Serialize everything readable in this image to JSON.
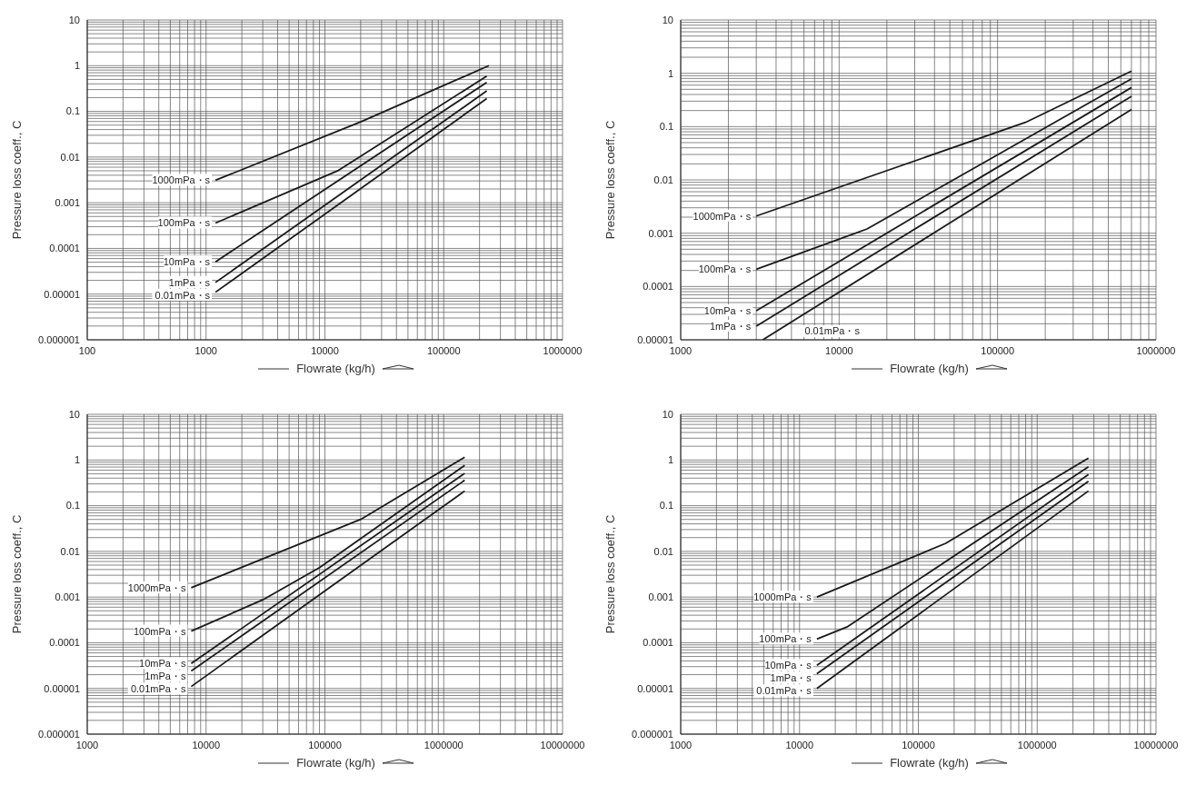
{
  "chart_data": [
    {
      "type": "line",
      "xlabel": "Flowrate (kg/h)",
      "ylabel": "Pressure loss coeff., C",
      "log": "xy",
      "grid": true,
      "xlim": [
        100,
        1000000
      ],
      "ylim": [
        1e-06,
        10
      ],
      "xticks": [
        100,
        {
          "value": 200,
          "label": null
        },
        {
          "value": 300,
          "label": null
        },
        {
          "value": 400,
          "label": null
        },
        {
          "value": 500,
          "label": null
        },
        {
          "value": 600,
          "label": null
        },
        {
          "value": 700,
          "label": null
        },
        {
          "value": 800,
          "label": null
        },
        {
          "value": 900,
          "label": null
        },
        1000,
        {
          "value": 2000,
          "label": null
        },
        {
          "value": 3000,
          "label": null
        },
        {
          "value": 4000,
          "label": null
        },
        {
          "value": 5000,
          "label": null
        },
        {
          "value": 6000,
          "label": null
        },
        {
          "value": 7000,
          "label": null
        },
        {
          "value": 8000,
          "label": null
        },
        {
          "value": 9000,
          "label": null
        },
        10000,
        {
          "value": 20000,
          "label": null
        },
        {
          "value": 30000,
          "label": null
        },
        {
          "value": 40000,
          "label": null
        },
        {
          "value": 50000,
          "label": null
        },
        {
          "value": 60000,
          "label": null
        },
        {
          "value": 70000,
          "label": null
        },
        {
          "value": 80000,
          "label": null
        },
        {
          "value": 90000,
          "label": null
        },
        100000,
        {
          "value": 200000,
          "label": null
        },
        {
          "value": 300000,
          "label": null
        },
        {
          "value": 400000,
          "label": null
        },
        {
          "value": 500000,
          "label": null
        },
        {
          "value": 600000,
          "label": null
        },
        {
          "value": 700000,
          "label": null
        },
        {
          "value": 800000,
          "label": null
        },
        {
          "value": 900000,
          "label": null
        },
        1000000
      ],
      "yticks": [
        {
          "value": 1e-06,
          "label": "0.000001"
        },
        {
          "value": 2e-06,
          "label": null
        },
        {
          "value": 3e-06,
          "label": null
        },
        {
          "value": 4e-06,
          "label": null
        },
        {
          "value": 5e-06,
          "label": null
        },
        {
          "value": 6e-06,
          "label": null
        },
        {
          "value": 7e-06,
          "label": null
        },
        {
          "value": 8e-06,
          "label": null
        },
        {
          "value": 9e-06,
          "label": null
        },
        {
          "value": 1e-05,
          "label": "0.00001"
        },
        {
          "value": 2e-05,
          "label": null
        },
        {
          "value": 3e-05,
          "label": null
        },
        {
          "value": 4e-05,
          "label": null
        },
        {
          "value": 5e-05,
          "label": null
        },
        {
          "value": 6e-05,
          "label": null
        },
        {
          "value": 7e-05,
          "label": null
        },
        {
          "value": 8e-05,
          "label": null
        },
        {
          "value": 9e-05,
          "label": null
        },
        0.0001,
        {
          "value": 0.0002,
          "label": null
        },
        {
          "value": 0.0003,
          "label": null
        },
        {
          "value": 0.0004,
          "label": null
        },
        {
          "value": 0.0005,
          "label": null
        },
        {
          "value": 0.0006,
          "label": null
        },
        {
          "value": 0.0007,
          "label": null
        },
        {
          "value": 0.0008,
          "label": null
        },
        {
          "value": 0.0009,
          "label": null
        },
        0.001,
        {
          "value": 0.002,
          "label": null
        },
        {
          "value": 0.003,
          "label": null
        },
        {
          "value": 0.004,
          "label": null
        },
        {
          "value": 0.005,
          "label": null
        },
        {
          "value": 0.006,
          "label": null
        },
        {
          "value": 0.007,
          "label": null
        },
        {
          "value": 0.008,
          "label": null
        },
        {
          "value": 0.009,
          "label": null
        },
        0.01,
        {
          "value": 0.02,
          "label": null
        },
        {
          "value": 0.03,
          "label": null
        },
        {
          "value": 0.04,
          "label": null
        },
        {
          "value": 0.05,
          "label": null
        },
        {
          "value": 0.06,
          "label": null
        },
        {
          "value": 0.07,
          "label": null
        },
        {
          "value": 0.08,
          "label": null
        },
        {
          "value": 0.09,
          "label": null
        },
        0.1,
        {
          "value": 0.2,
          "label": null
        },
        {
          "value": 0.3,
          "label": null
        },
        {
          "value": 0.4,
          "label": null
        },
        {
          "value": 0.5,
          "label": null
        },
        {
          "value": 0.6,
          "label": null
        },
        {
          "value": 0.7,
          "label": null
        },
        {
          "value": 0.8,
          "label": null
        },
        {
          "value": 0.9,
          "label": null
        },
        1,
        {
          "value": 2,
          "label": null
        },
        {
          "value": 3,
          "label": null
        },
        {
          "value": 4,
          "label": null
        },
        {
          "value": 5,
          "label": null
        },
        {
          "value": 6,
          "label": null
        },
        {
          "value": 7,
          "label": null
        },
        {
          "value": 8,
          "label": null
        },
        {
          "value": 9,
          "label": null
        },
        10
      ],
      "series": [
        {
          "name": "1000mPa・s",
          "color": "#1a1a1a",
          "x": [
            1200,
            20000,
            240000
          ],
          "values": [
            0.0031,
            0.059,
            1.0
          ]
        },
        {
          "name": "100mPa・s",
          "color": "#1a1a1a",
          "x": [
            1200,
            13000,
            230000
          ],
          "values": [
            0.00036,
            0.0051,
            0.59
          ]
        },
        {
          "name": "10mPa・s",
          "color": "#1a1a1a",
          "x": [
            1200,
            230000
          ],
          "values": [
            5.1e-05,
            0.43
          ]
        },
        {
          "name": "1mPa・s",
          "color": "#1a1a1a",
          "x": [
            1200,
            230000
          ],
          "values": [
            1.8e-05,
            0.28
          ]
        },
        {
          "name": "0.01mPa・s",
          "color": "#1a1a1a",
          "x": [
            1200,
            230000
          ],
          "values": [
            1.1e-05,
            0.19
          ]
        }
      ]
    },
    {
      "type": "line",
      "xlabel": "Flowrate (kg/h)",
      "ylabel": "Pressure loss coeff., C",
      "log": "xy",
      "grid": true,
      "xlim": [
        1000,
        1000000
      ],
      "ylim": [
        1e-05,
        10
      ],
      "xticks": [
        1000,
        {
          "value": 2000,
          "label": null
        },
        {
          "value": 3000,
          "label": null
        },
        {
          "value": 4000,
          "label": null
        },
        {
          "value": 5000,
          "label": null
        },
        {
          "value": 6000,
          "label": null
        },
        {
          "value": 7000,
          "label": null
        },
        {
          "value": 8000,
          "label": null
        },
        {
          "value": 9000,
          "label": null
        },
        10000,
        {
          "value": 20000,
          "label": null
        },
        {
          "value": 30000,
          "label": null
        },
        {
          "value": 40000,
          "label": null
        },
        {
          "value": 50000,
          "label": null
        },
        {
          "value": 60000,
          "label": null
        },
        {
          "value": 70000,
          "label": null
        },
        {
          "value": 80000,
          "label": null
        },
        {
          "value": 90000,
          "label": null
        },
        100000,
        {
          "value": 200000,
          "label": null
        },
        {
          "value": 300000,
          "label": null
        },
        {
          "value": 400000,
          "label": null
        },
        {
          "value": 500000,
          "label": null
        },
        {
          "value": 600000,
          "label": null
        },
        {
          "value": 700000,
          "label": null
        },
        {
          "value": 800000,
          "label": null
        },
        {
          "value": 900000,
          "label": null
        },
        1000000
      ],
      "yticks": [
        {
          "value": 1e-05,
          "label": "0.00001"
        },
        {
          "value": 2e-05,
          "label": null
        },
        {
          "value": 3e-05,
          "label": null
        },
        {
          "value": 4e-05,
          "label": null
        },
        {
          "value": 5e-05,
          "label": null
        },
        {
          "value": 6e-05,
          "label": null
        },
        {
          "value": 7e-05,
          "label": null
        },
        {
          "value": 8e-05,
          "label": null
        },
        {
          "value": 9e-05,
          "label": null
        },
        0.0001,
        {
          "value": 0.0002,
          "label": null
        },
        {
          "value": 0.0003,
          "label": null
        },
        {
          "value": 0.0004,
          "label": null
        },
        {
          "value": 0.0005,
          "label": null
        },
        {
          "value": 0.0006,
          "label": null
        },
        {
          "value": 0.0007,
          "label": null
        },
        {
          "value": 0.0008,
          "label": null
        },
        {
          "value": 0.0009,
          "label": null
        },
        0.001,
        {
          "value": 0.002,
          "label": null
        },
        {
          "value": 0.003,
          "label": null
        },
        {
          "value": 0.004,
          "label": null
        },
        {
          "value": 0.005,
          "label": null
        },
        {
          "value": 0.006,
          "label": null
        },
        {
          "value": 0.007,
          "label": null
        },
        {
          "value": 0.008,
          "label": null
        },
        {
          "value": 0.009,
          "label": null
        },
        0.01,
        {
          "value": 0.02,
          "label": null
        },
        {
          "value": 0.03,
          "label": null
        },
        {
          "value": 0.04,
          "label": null
        },
        {
          "value": 0.05,
          "label": null
        },
        {
          "value": 0.06,
          "label": null
        },
        {
          "value": 0.07,
          "label": null
        },
        {
          "value": 0.08,
          "label": null
        },
        {
          "value": 0.09,
          "label": null
        },
        0.1,
        {
          "value": 0.2,
          "label": null
        },
        {
          "value": 0.3,
          "label": null
        },
        {
          "value": 0.4,
          "label": null
        },
        {
          "value": 0.5,
          "label": null
        },
        {
          "value": 0.6,
          "label": null
        },
        {
          "value": 0.7,
          "label": null
        },
        {
          "value": 0.8,
          "label": null
        },
        {
          "value": 0.9,
          "label": null
        },
        1,
        {
          "value": 2,
          "label": null
        },
        {
          "value": 3,
          "label": null
        },
        {
          "value": 4,
          "label": null
        },
        {
          "value": 5,
          "label": null
        },
        {
          "value": 6,
          "label": null
        },
        {
          "value": 7,
          "label": null
        },
        {
          "value": 8,
          "label": null
        },
        {
          "value": 9,
          "label": null
        },
        10
      ],
      "series": [
        {
          "name": "1000mPa・s",
          "color": "#1a1a1a",
          "x": [
            3000,
            150000,
            700000
          ],
          "values": [
            0.0021,
            0.12,
            1.1
          ]
        },
        {
          "name": "100mPa・s",
          "color": "#1a1a1a",
          "x": [
            3000,
            15000,
            700000
          ],
          "values": [
            0.00021,
            0.0012,
            0.79
          ]
        },
        {
          "name": "10mPa・s",
          "color": "#1a1a1a",
          "x": [
            3000,
            700000
          ],
          "values": [
            3.5e-05,
            0.54
          ]
        },
        {
          "name": "1mPa・s",
          "color": "#1a1a1a",
          "x": [
            3000,
            700000
          ],
          "values": [
            1.8e-05,
            0.37
          ]
        },
        {
          "name": "0.01mPa・s",
          "color": "#1a1a1a",
          "x": [
            3300,
            700000
          ],
          "values": [
            1e-05,
            0.21
          ]
        }
      ]
    },
    {
      "type": "line",
      "xlabel": "Flowrate (kg/h)",
      "ylabel": "Pressure loss coeff., C",
      "log": "xy",
      "grid": true,
      "xlim": [
        1000,
        10000000
      ],
      "ylim": [
        1e-06,
        10
      ],
      "xticks": [
        1000,
        {
          "value": 2000,
          "label": null
        },
        {
          "value": 3000,
          "label": null
        },
        {
          "value": 4000,
          "label": null
        },
        {
          "value": 5000,
          "label": null
        },
        {
          "value": 6000,
          "label": null
        },
        {
          "value": 7000,
          "label": null
        },
        {
          "value": 8000,
          "label": null
        },
        {
          "value": 9000,
          "label": null
        },
        10000,
        {
          "value": 20000,
          "label": null
        },
        {
          "value": 30000,
          "label": null
        },
        {
          "value": 40000,
          "label": null
        },
        {
          "value": 50000,
          "label": null
        },
        {
          "value": 60000,
          "label": null
        },
        {
          "value": 70000,
          "label": null
        },
        {
          "value": 80000,
          "label": null
        },
        {
          "value": 90000,
          "label": null
        },
        100000,
        {
          "value": 200000,
          "label": null
        },
        {
          "value": 300000,
          "label": null
        },
        {
          "value": 400000,
          "label": null
        },
        {
          "value": 500000,
          "label": null
        },
        {
          "value": 600000,
          "label": null
        },
        {
          "value": 700000,
          "label": null
        },
        {
          "value": 800000,
          "label": null
        },
        {
          "value": 900000,
          "label": null
        },
        1000000,
        {
          "value": 2000000,
          "label": null
        },
        {
          "value": 3000000,
          "label": null
        },
        {
          "value": 4000000,
          "label": null
        },
        {
          "value": 5000000,
          "label": null
        },
        {
          "value": 6000000,
          "label": null
        },
        {
          "value": 7000000,
          "label": null
        },
        {
          "value": 8000000,
          "label": null
        },
        {
          "value": 9000000,
          "label": null
        },
        10000000
      ],
      "yticks": [
        {
          "value": 1e-06,
          "label": "0.000001"
        },
        {
          "value": 2e-06,
          "label": null
        },
        {
          "value": 3e-06,
          "label": null
        },
        {
          "value": 4e-06,
          "label": null
        },
        {
          "value": 5e-06,
          "label": null
        },
        {
          "value": 6e-06,
          "label": null
        },
        {
          "value": 7e-06,
          "label": null
        },
        {
          "value": 8e-06,
          "label": null
        },
        {
          "value": 9e-06,
          "label": null
        },
        {
          "value": 1e-05,
          "label": "0.00001"
        },
        {
          "value": 2e-05,
          "label": null
        },
        {
          "value": 3e-05,
          "label": null
        },
        {
          "value": 4e-05,
          "label": null
        },
        {
          "value": 5e-05,
          "label": null
        },
        {
          "value": 6e-05,
          "label": null
        },
        {
          "value": 7e-05,
          "label": null
        },
        {
          "value": 8e-05,
          "label": null
        },
        {
          "value": 9e-05,
          "label": null
        },
        0.0001,
        {
          "value": 0.0002,
          "label": null
        },
        {
          "value": 0.0003,
          "label": null
        },
        {
          "value": 0.0004,
          "label": null
        },
        {
          "value": 0.0005,
          "label": null
        },
        {
          "value": 0.0006,
          "label": null
        },
        {
          "value": 0.0007,
          "label": null
        },
        {
          "value": 0.0008,
          "label": null
        },
        {
          "value": 0.0009,
          "label": null
        },
        0.001,
        {
          "value": 0.002,
          "label": null
        },
        {
          "value": 0.003,
          "label": null
        },
        {
          "value": 0.004,
          "label": null
        },
        {
          "value": 0.005,
          "label": null
        },
        {
          "value": 0.006,
          "label": null
        },
        {
          "value": 0.007,
          "label": null
        },
        {
          "value": 0.008,
          "label": null
        },
        {
          "value": 0.009,
          "label": null
        },
        0.01,
        {
          "value": 0.02,
          "label": null
        },
        {
          "value": 0.03,
          "label": null
        },
        {
          "value": 0.04,
          "label": null
        },
        {
          "value": 0.05,
          "label": null
        },
        {
          "value": 0.06,
          "label": null
        },
        {
          "value": 0.07,
          "label": null
        },
        {
          "value": 0.08,
          "label": null
        },
        {
          "value": 0.09,
          "label": null
        },
        0.1,
        {
          "value": 0.2,
          "label": null
        },
        {
          "value": 0.3,
          "label": null
        },
        {
          "value": 0.4,
          "label": null
        },
        {
          "value": 0.5,
          "label": null
        },
        {
          "value": 0.6,
          "label": null
        },
        {
          "value": 0.7,
          "label": null
        },
        {
          "value": 0.8,
          "label": null
        },
        {
          "value": 0.9,
          "label": null
        },
        1,
        {
          "value": 2,
          "label": null
        },
        {
          "value": 3,
          "label": null
        },
        {
          "value": 4,
          "label": null
        },
        {
          "value": 5,
          "label": null
        },
        {
          "value": 6,
          "label": null
        },
        {
          "value": 7,
          "label": null
        },
        {
          "value": 8,
          "label": null
        },
        {
          "value": 9,
          "label": null
        },
        10
      ],
      "series": [
        {
          "name": "1000mPa・s",
          "color": "#1a1a1a",
          "x": [
            7500,
            200000,
            1500000
          ],
          "values": [
            0.0016,
            0.05,
            1.15
          ]
        },
        {
          "name": "100mPa・s",
          "color": "#1a1a1a",
          "x": [
            7500,
            30000,
            90000,
            1500000
          ],
          "values": [
            0.00018,
            0.00087,
            0.0044,
            0.76
          ]
        },
        {
          "name": "10mPa・s",
          "color": "#1a1a1a",
          "x": [
            7500,
            1500000
          ],
          "values": [
            3.5e-05,
            0.51
          ]
        },
        {
          "name": "1mPa・s",
          "color": "#1a1a1a",
          "x": [
            7500,
            1500000
          ],
          "values": [
            2.4e-05,
            0.36
          ]
        },
        {
          "name": "0.01mPa・s",
          "color": "#1a1a1a",
          "x": [
            7500,
            1500000
          ],
          "values": [
            1.1e-05,
            0.21
          ]
        }
      ]
    },
    {
      "type": "line",
      "xlabel": "Flowrate (kg/h)",
      "ylabel": "Pressure loss coeff., C",
      "log": "xy",
      "grid": true,
      "xlim": [
        1000,
        10000000
      ],
      "ylim": [
        1e-06,
        10
      ],
      "xticks": [
        1000,
        {
          "value": 2000,
          "label": null
        },
        {
          "value": 3000,
          "label": null
        },
        {
          "value": 4000,
          "label": null
        },
        {
          "value": 5000,
          "label": null
        },
        {
          "value": 6000,
          "label": null
        },
        {
          "value": 7000,
          "label": null
        },
        {
          "value": 8000,
          "label": null
        },
        {
          "value": 9000,
          "label": null
        },
        10000,
        {
          "value": 20000,
          "label": null
        },
        {
          "value": 30000,
          "label": null
        },
        {
          "value": 40000,
          "label": null
        },
        {
          "value": 50000,
          "label": null
        },
        {
          "value": 60000,
          "label": null
        },
        {
          "value": 70000,
          "label": null
        },
        {
          "value": 80000,
          "label": null
        },
        {
          "value": 90000,
          "label": null
        },
        100000,
        {
          "value": 200000,
          "label": null
        },
        {
          "value": 300000,
          "label": null
        },
        {
          "value": 400000,
          "label": null
        },
        {
          "value": 500000,
          "label": null
        },
        {
          "value": 600000,
          "label": null
        },
        {
          "value": 700000,
          "label": null
        },
        {
          "value": 800000,
          "label": null
        },
        {
          "value": 900000,
          "label": null
        },
        1000000,
        {
          "value": 2000000,
          "label": null
        },
        {
          "value": 3000000,
          "label": null
        },
        {
          "value": 4000000,
          "label": null
        },
        {
          "value": 5000000,
          "label": null
        },
        {
          "value": 6000000,
          "label": null
        },
        {
          "value": 7000000,
          "label": null
        },
        {
          "value": 8000000,
          "label": null
        },
        {
          "value": 9000000,
          "label": null
        },
        10000000
      ],
      "yticks": [
        {
          "value": 1e-06,
          "label": "0.000001"
        },
        {
          "value": 2e-06,
          "label": null
        },
        {
          "value": 3e-06,
          "label": null
        },
        {
          "value": 4e-06,
          "label": null
        },
        {
          "value": 5e-06,
          "label": null
        },
        {
          "value": 6e-06,
          "label": null
        },
        {
          "value": 7e-06,
          "label": null
        },
        {
          "value": 8e-06,
          "label": null
        },
        {
          "value": 9e-06,
          "label": null
        },
        {
          "value": 1e-05,
          "label": "0.00001"
        },
        {
          "value": 2e-05,
          "label": null
        },
        {
          "value": 3e-05,
          "label": null
        },
        {
          "value": 4e-05,
          "label": null
        },
        {
          "value": 5e-05,
          "label": null
        },
        {
          "value": 6e-05,
          "label": null
        },
        {
          "value": 7e-05,
          "label": null
        },
        {
          "value": 8e-05,
          "label": null
        },
        {
          "value": 9e-05,
          "label": null
        },
        0.0001,
        {
          "value": 0.0002,
          "label": null
        },
        {
          "value": 0.0003,
          "label": null
        },
        {
          "value": 0.0004,
          "label": null
        },
        {
          "value": 0.0005,
          "label": null
        },
        {
          "value": 0.0006,
          "label": null
        },
        {
          "value": 0.0007,
          "label": null
        },
        {
          "value": 0.0008,
          "label": null
        },
        {
          "value": 0.0009,
          "label": null
        },
        0.001,
        {
          "value": 0.002,
          "label": null
        },
        {
          "value": 0.003,
          "label": null
        },
        {
          "value": 0.004,
          "label": null
        },
        {
          "value": 0.005,
          "label": null
        },
        {
          "value": 0.006,
          "label": null
        },
        {
          "value": 0.007,
          "label": null
        },
        {
          "value": 0.008,
          "label": null
        },
        {
          "value": 0.009,
          "label": null
        },
        0.01,
        {
          "value": 0.02,
          "label": null
        },
        {
          "value": 0.03,
          "label": null
        },
        {
          "value": 0.04,
          "label": null
        },
        {
          "value": 0.05,
          "label": null
        },
        {
          "value": 0.06,
          "label": null
        },
        {
          "value": 0.07,
          "label": null
        },
        {
          "value": 0.08,
          "label": null
        },
        {
          "value": 0.09,
          "label": null
        },
        0.1,
        {
          "value": 0.2,
          "label": null
        },
        {
          "value": 0.3,
          "label": null
        },
        {
          "value": 0.4,
          "label": null
        },
        {
          "value": 0.5,
          "label": null
        },
        {
          "value": 0.6,
          "label": null
        },
        {
          "value": 0.7,
          "label": null
        },
        {
          "value": 0.8,
          "label": null
        },
        {
          "value": 0.9,
          "label": null
        },
        1,
        {
          "value": 2,
          "label": null
        },
        {
          "value": 3,
          "label": null
        },
        {
          "value": 4,
          "label": null
        },
        {
          "value": 5,
          "label": null
        },
        {
          "value": 6,
          "label": null
        },
        {
          "value": 7,
          "label": null
        },
        {
          "value": 8,
          "label": null
        },
        {
          "value": 9,
          "label": null
        },
        10
      ],
      "series": [
        {
          "name": "1000mPa・s",
          "color": "#1a1a1a",
          "x": [
            14000,
            170000,
            2700000
          ],
          "values": [
            0.001,
            0.015,
            1.1
          ]
        },
        {
          "name": "100mPa・s",
          "color": "#1a1a1a",
          "x": [
            14000,
            25000,
            2700000
          ],
          "values": [
            0.00012,
            0.00022,
            0.71
          ]
        },
        {
          "name": "10mPa・s",
          "color": "#1a1a1a",
          "x": [
            14000,
            2700000
          ],
          "values": [
            3.2e-05,
            0.48
          ]
        },
        {
          "name": "1mPa・s",
          "color": "#1a1a1a",
          "x": [
            14000,
            2700000
          ],
          "values": [
            2.1e-05,
            0.34
          ]
        },
        {
          "name": "0.01mPa・s",
          "color": "#1a1a1a",
          "x": [
            14000,
            2700000
          ],
          "values": [
            1e-05,
            0.21
          ]
        }
      ]
    }
  ]
}
